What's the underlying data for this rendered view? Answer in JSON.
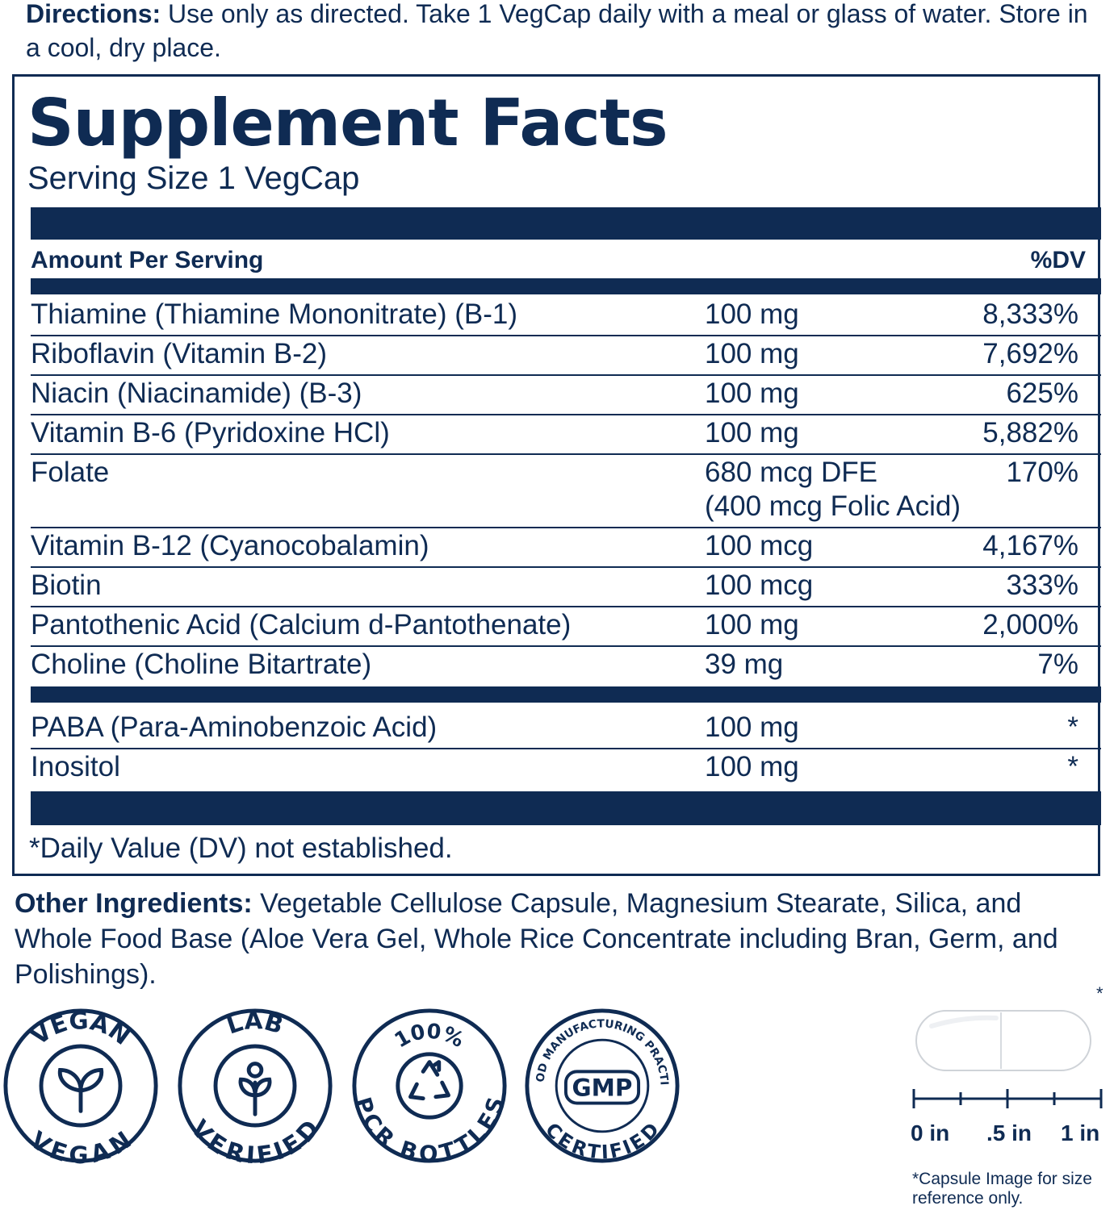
{
  "directions": {
    "label": "Directions:",
    "text": " Use only as directed. Take 1 VegCap daily with a meal or glass of water. Store in a cool, dry place."
  },
  "facts": {
    "title": "Supplement Facts",
    "serving_size": "Serving Size 1 VegCap",
    "amount_header": "Amount Per Serving",
    "dv_header": "%DV",
    "rows": [
      {
        "name": "Thiamine (Thiamine Mononitrate) (B-1)",
        "amount": "100 mg",
        "dv": "8,333%"
      },
      {
        "name": "Riboflavin (Vitamin B-2)",
        "amount": "100 mg",
        "dv": "7,692%"
      },
      {
        "name": "Niacin (Niacinamide) (B-3)",
        "amount": "100 mg",
        "dv": "625%"
      },
      {
        "name": "Vitamin B-6 (Pyridoxine HCl)",
        "amount": "100 mg",
        "dv": "5,882%"
      },
      {
        "name": "Folate",
        "amount": "680 mcg DFE",
        "amount_line2": "(400 mcg Folic Acid)",
        "dv": "170%"
      },
      {
        "name": "Vitamin B-12 (Cyanocobalamin)",
        "amount": "100 mcg",
        "dv": "4,167%"
      },
      {
        "name": "Biotin",
        "amount": "100 mcg",
        "dv": "333%"
      },
      {
        "name": "Pantothenic Acid (Calcium d-Pantothenate)",
        "amount": "100 mg",
        "dv": "2,000%"
      },
      {
        "name": "Choline (Choline Bitartrate)",
        "amount": "39 mg",
        "dv": "7%"
      }
    ],
    "other_rows": [
      {
        "name": "PABA (Para-Aminobenzoic Acid)",
        "amount": "100 mg",
        "dv": "*"
      },
      {
        "name": "Inositol",
        "amount": "100 mg",
        "dv": "*"
      }
    ],
    "footnote": "*Daily Value (DV) not established."
  },
  "other_ingredients": {
    "label": "Other Ingredients:",
    "text": " Vegetable Cellulose Capsule, Magnesium Stearate, Silica, and Whole Food Base (Aloe Vera Gel, Whole Rice Concentrate including Bran, Germ, and Polishings)."
  },
  "badges": [
    {
      "top": "VEGAN",
      "bottom": "VEGAN",
      "icon": "sprout-icon"
    },
    {
      "top": "LAB",
      "bottom": "VERIFIED",
      "icon": "flower-icon"
    },
    {
      "top": "100%",
      "bottom": "PCR BOTTLES",
      "icon": "recycle-icon"
    },
    {
      "top": "GOOD MANUFACTURING PRACTICE",
      "center": "GMP",
      "bottom": "CERTIFIED",
      "icon": "gmp-icon"
    }
  ],
  "capsule_ref": {
    "asterisk": "*",
    "labels": [
      "0 in",
      ".5 in",
      "1 in"
    ],
    "note": "*Capsule Image for size reference only."
  },
  "colors": {
    "navy": "#0f2b53"
  }
}
